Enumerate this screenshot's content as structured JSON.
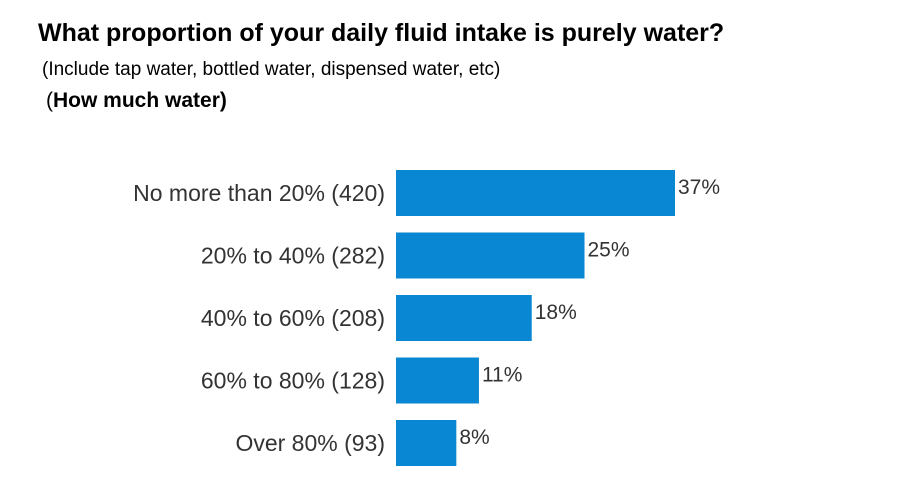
{
  "title": "What proportion of your daily fluid intake is purely water?",
  "subtitle": "(Include tap water, bottled water, dispensed water, etc)",
  "subtitle2": {
    "open": "(",
    "bold": "How much water)"
  },
  "colors": {
    "bar": "#0A87D2",
    "text": "#333333"
  },
  "chart_data": {
    "type": "bar",
    "orientation": "horizontal",
    "title": "What proportion of your daily fluid intake is purely water?",
    "categories": [
      "No more than 20% (420)",
      "20% to 40% (282)",
      "40% to 60% (208)",
      "60% to 80% (128)",
      "Over 80% (93)"
    ],
    "values": [
      37,
      25,
      18,
      11,
      8
    ],
    "value_labels": [
      "37%",
      "25%",
      "18%",
      "11%",
      "8%"
    ],
    "xlim": [
      0,
      37
    ],
    "grid": false,
    "legend": "none"
  }
}
